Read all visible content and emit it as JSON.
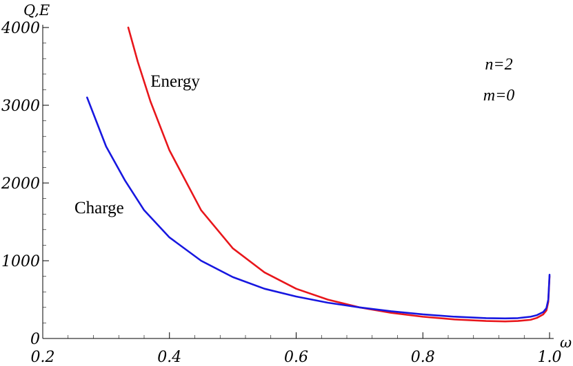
{
  "chart_data": {
    "type": "line",
    "xlabel": "ω",
    "ylabel": "Q,E",
    "xlim": [
      0.2,
      1.0
    ],
    "ylim": [
      0,
      4000
    ],
    "xticks": [
      0.2,
      0.4,
      0.6,
      0.8,
      1.0
    ],
    "xtick_labels": [
      "0.2",
      "0.4",
      "0.6",
      "0.8",
      "1.0"
    ],
    "yticks": [
      0,
      1000,
      2000,
      3000,
      4000
    ],
    "ytick_labels": [
      "0",
      "1000",
      "2000",
      "3000",
      "4000"
    ],
    "grid": false,
    "annotations": [
      {
        "text": "n=2",
        "x": 0.92,
        "y": 3460
      },
      {
        "text": "m=0",
        "x": 0.92,
        "y": 3060
      }
    ],
    "series": [
      {
        "name": "Energy",
        "color": "#e8161b",
        "label_pos": {
          "x": 0.37,
          "y": 3240
        },
        "x": [
          0.335,
          0.35,
          0.37,
          0.4,
          0.45,
          0.5,
          0.55,
          0.6,
          0.65,
          0.7,
          0.75,
          0.8,
          0.85,
          0.9,
          0.93,
          0.95,
          0.97,
          0.98,
          0.99,
          0.995,
          0.998,
          1.0
        ],
        "y": [
          4000,
          3560,
          3050,
          2420,
          1650,
          1160,
          850,
          640,
          500,
          400,
          330,
          280,
          245,
          225,
          220,
          225,
          240,
          265,
          310,
          360,
          470,
          800
        ]
      },
      {
        "name": "Charge",
        "color": "#1717e0",
        "label_pos": {
          "x": 0.25,
          "y": 1610
        },
        "x": [
          0.27,
          0.3,
          0.33,
          0.36,
          0.4,
          0.45,
          0.5,
          0.55,
          0.6,
          0.65,
          0.7,
          0.75,
          0.8,
          0.85,
          0.9,
          0.93,
          0.95,
          0.97,
          0.98,
          0.99,
          0.995,
          0.998,
          1.0
        ],
        "y": [
          3100,
          2470,
          2030,
          1650,
          1300,
          1000,
          790,
          640,
          540,
          460,
          400,
          350,
          310,
          280,
          262,
          258,
          262,
          280,
          300,
          340,
          390,
          500,
          820
        ]
      }
    ]
  }
}
